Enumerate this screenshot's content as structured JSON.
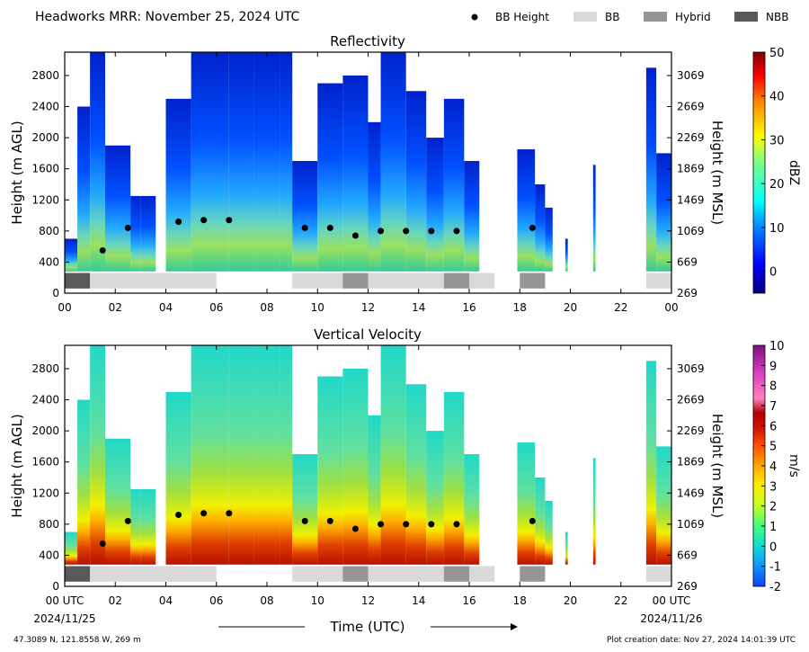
{
  "header": {
    "title": "Headworks MRR:  November 25, 2024 UTC",
    "legend": [
      {
        "label": "BB Height",
        "kind": "dot",
        "color": "#000000"
      },
      {
        "label": "BB",
        "kind": "bar",
        "color": "#d9d9d9"
      },
      {
        "label": "Hybrid",
        "kind": "bar",
        "color": "#969696"
      },
      {
        "label": "NBB",
        "kind": "bar",
        "color": "#595959"
      }
    ]
  },
  "chart_data": [
    {
      "type": "heatmap",
      "title": "Reflectivity",
      "ylabel": "Height (m AGL)",
      "y2label": "Height (m MSL)",
      "xlim": [
        0,
        24
      ],
      "ylim": [
        0,
        3100
      ],
      "x_ticks": [
        "00",
        "02",
        "04",
        "06",
        "08",
        "10",
        "12",
        "14",
        "16",
        "18",
        "20",
        "22",
        "00"
      ],
      "y_ticks": [
        0,
        400,
        800,
        1200,
        1600,
        2000,
        2400,
        2800
      ],
      "y2_ticks": [
        "269",
        "669",
        "1069",
        "1469",
        "1869",
        "2269",
        "2669",
        "3069"
      ],
      "colorbar": {
        "label": "dBZ",
        "min": -5,
        "max": 50,
        "ticks": [
          0,
          10,
          20,
          30,
          40,
          50
        ],
        "colormap": "jet"
      },
      "bb_height_points": [
        [
          1.5,
          550
        ],
        [
          2.5,
          840
        ],
        [
          4.5,
          920
        ],
        [
          5.5,
          940
        ],
        [
          6.5,
          940
        ],
        [
          9.5,
          840
        ],
        [
          10.5,
          840
        ],
        [
          11.5,
          740
        ],
        [
          12.5,
          800
        ],
        [
          13.5,
          800
        ],
        [
          14.5,
          800
        ],
        [
          15.5,
          800
        ],
        [
          18.5,
          840
        ]
      ],
      "bb_classification": [
        {
          "start": 0,
          "end": 1,
          "class": "NBB"
        },
        {
          "start": 1,
          "end": 6,
          "class": "BB"
        },
        {
          "start": 9,
          "end": 11,
          "class": "BB"
        },
        {
          "start": 11,
          "end": 12,
          "class": "Hybrid"
        },
        {
          "start": 12,
          "end": 15,
          "class": "BB"
        },
        {
          "start": 15,
          "end": 16,
          "class": "Hybrid"
        },
        {
          "start": 16,
          "end": 17,
          "class": "BB"
        },
        {
          "start": 18,
          "end": 19,
          "class": "Hybrid"
        },
        {
          "start": 23,
          "end": 24,
          "class": "BB"
        }
      ]
    },
    {
      "type": "heatmap",
      "title": "Vertical Velocity",
      "ylabel": "Height (m AGL)",
      "y2label": "Height (m MSL)",
      "xlabel": "Time (UTC)",
      "xlim": [
        0,
        24
      ],
      "ylim": [
        0,
        3100
      ],
      "x_ticks": [
        "00 UTC",
        "02",
        "04",
        "06",
        "08",
        "10",
        "12",
        "14",
        "16",
        "18",
        "20",
        "22",
        "00 UTC"
      ],
      "x_date_start": "2024/11/25",
      "x_date_end": "2024/11/26",
      "y_ticks": [
        0,
        400,
        800,
        1200,
        1600,
        2000,
        2400,
        2800
      ],
      "y2_ticks": [
        "269",
        "669",
        "1069",
        "1469",
        "1869",
        "2269",
        "2669",
        "3069"
      ],
      "colorbar": {
        "label": "m/s",
        "min": -2,
        "max": 10,
        "ticks": [
          -2,
          -1,
          0,
          1,
          2,
          3,
          4,
          5,
          6,
          7,
          8,
          9,
          10
        ]
      },
      "bb_height_points": [
        [
          1.5,
          550
        ],
        [
          2.5,
          840
        ],
        [
          4.5,
          920
        ],
        [
          5.5,
          940
        ],
        [
          6.5,
          940
        ],
        [
          9.5,
          840
        ],
        [
          10.5,
          840
        ],
        [
          11.5,
          740
        ],
        [
          12.5,
          800
        ],
        [
          13.5,
          800
        ],
        [
          14.5,
          800
        ],
        [
          15.5,
          800
        ],
        [
          18.5,
          840
        ]
      ],
      "bb_classification": [
        {
          "start": 0,
          "end": 1,
          "class": "NBB"
        },
        {
          "start": 1,
          "end": 6,
          "class": "BB"
        },
        {
          "start": 9,
          "end": 11,
          "class": "BB"
        },
        {
          "start": 11,
          "end": 12,
          "class": "Hybrid"
        },
        {
          "start": 12,
          "end": 15,
          "class": "BB"
        },
        {
          "start": 15,
          "end": 16,
          "class": "Hybrid"
        },
        {
          "start": 16,
          "end": 17,
          "class": "BB"
        },
        {
          "start": 18,
          "end": 19,
          "class": "Hybrid"
        },
        {
          "start": 23,
          "end": 24,
          "class": "BB"
        }
      ]
    }
  ],
  "echo_columns": [
    {
      "start": 0.0,
      "end": 0.5,
      "top": 700
    },
    {
      "start": 0.5,
      "end": 1.0,
      "top": 2400
    },
    {
      "start": 1.0,
      "end": 1.6,
      "top": 3100
    },
    {
      "start": 1.6,
      "end": 2.6,
      "top": 1900
    },
    {
      "start": 2.6,
      "end": 3.0,
      "top": 1250
    },
    {
      "start": 3.0,
      "end": 3.6,
      "top": 1250
    },
    {
      "start": 4.0,
      "end": 5.0,
      "top": 2500
    },
    {
      "start": 5.0,
      "end": 6.5,
      "top": 3100
    },
    {
      "start": 6.5,
      "end": 7.5,
      "top": 3100
    },
    {
      "start": 7.5,
      "end": 8.5,
      "top": 3100
    },
    {
      "start": 8.5,
      "end": 9.0,
      "top": 3100
    },
    {
      "start": 9.0,
      "end": 10.0,
      "top": 1700
    },
    {
      "start": 10.0,
      "end": 11.0,
      "top": 2700
    },
    {
      "start": 11.0,
      "end": 12.0,
      "top": 2800
    },
    {
      "start": 12.0,
      "end": 12.5,
      "top": 2200
    },
    {
      "start": 12.5,
      "end": 13.5,
      "top": 3100
    },
    {
      "start": 13.5,
      "end": 14.3,
      "top": 2600
    },
    {
      "start": 14.3,
      "end": 15.0,
      "top": 2000
    },
    {
      "start": 15.0,
      "end": 15.8,
      "top": 2500
    },
    {
      "start": 15.8,
      "end": 16.4,
      "top": 1700
    },
    {
      "start": 17.9,
      "end": 18.6,
      "top": 1850
    },
    {
      "start": 18.6,
      "end": 19.0,
      "top": 1400
    },
    {
      "start": 19.0,
      "end": 19.3,
      "top": 1100
    },
    {
      "start": 19.8,
      "end": 19.9,
      "top": 700
    },
    {
      "start": 20.9,
      "end": 21.0,
      "top": 1650
    },
    {
      "start": 23.0,
      "end": 23.4,
      "top": 2900
    },
    {
      "start": 23.4,
      "end": 24.0,
      "top": 1800
    }
  ],
  "footer": {
    "coords": "47.3089 N, 121.8558 W, 269 m",
    "created": "Plot creation date: Nov 27, 2024 14:01:39 UTC"
  }
}
